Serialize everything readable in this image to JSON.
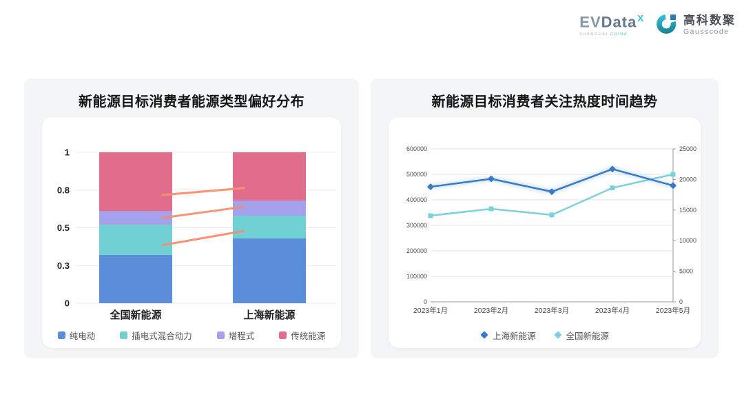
{
  "header": {
    "evdata": {
      "ev": "EV",
      "data": "Data",
      "sup": "X",
      "sub_1": "SHANGHAI",
      "sub_2": "CHINA"
    },
    "gausscode": {
      "cn": "高科数聚",
      "en": "Gausscode"
    }
  },
  "chart_data": [
    {
      "type": "bar",
      "stacked": true,
      "title": "新能源目标消费者能源类型偏好分布",
      "categories": [
        "全国新能源",
        "上海新能源"
      ],
      "series": [
        {
          "name": "纯电动",
          "color": "#5b8dd9",
          "values": [
            0.32,
            0.43
          ]
        },
        {
          "name": "插电式混合动力",
          "color": "#70d0d4",
          "values": [
            0.2,
            0.15
          ]
        },
        {
          "name": "增程式",
          "color": "#a5a1ec",
          "values": [
            0.09,
            0.1
          ]
        },
        {
          "name": "传统能源",
          "color": "#e16d8d",
          "values": [
            0.39,
            0.32
          ]
        }
      ],
      "ylim": [
        0,
        1
      ],
      "y_ticks": {
        "positions": [
          0,
          0.25,
          0.5,
          0.75,
          1
        ],
        "labels": [
          "0",
          "0.3",
          "0.5",
          "0.8",
          "1"
        ]
      },
      "connectors": {
        "color": "#f98e6d",
        "lines": [
          {
            "from": 0.717,
            "to": 0.763
          },
          {
            "from": 0.566,
            "to": 0.639
          },
          {
            "from": 0.385,
            "to": 0.479
          }
        ]
      },
      "grid": true,
      "legend_position": "bottom"
    },
    {
      "type": "line",
      "title": "新能源目标消费者关注热度时间趋势",
      "categories": [
        "2023年1月",
        "2023年2月",
        "2023年3月",
        "2023年4月",
        "2023年5月"
      ],
      "series": [
        {
          "name": "上海新能源",
          "axis": "right",
          "color": "#3b79c2",
          "marker": "diamond",
          "glow": true,
          "values": [
            18800,
            20100,
            18000,
            21700,
            19000
          ]
        },
        {
          "name": "全国新能源",
          "axis": "left",
          "color": "#7cd1da",
          "marker": "square",
          "glow": false,
          "values": [
            338000,
            365000,
            341000,
            447000,
            500000
          ]
        }
      ],
      "left_axis": {
        "min": 0,
        "max": 600000,
        "step": 100000,
        "labels": [
          "0",
          "100000",
          "200000",
          "300000",
          "400000",
          "500000",
          "600000"
        ]
      },
      "right_axis": {
        "min": 0,
        "max": 25000,
        "step": 5000,
        "labels": [
          "0",
          "5000",
          "10000",
          "15000",
          "20000",
          "25000"
        ]
      },
      "grid": true,
      "legend_position": "bottom"
    }
  ]
}
